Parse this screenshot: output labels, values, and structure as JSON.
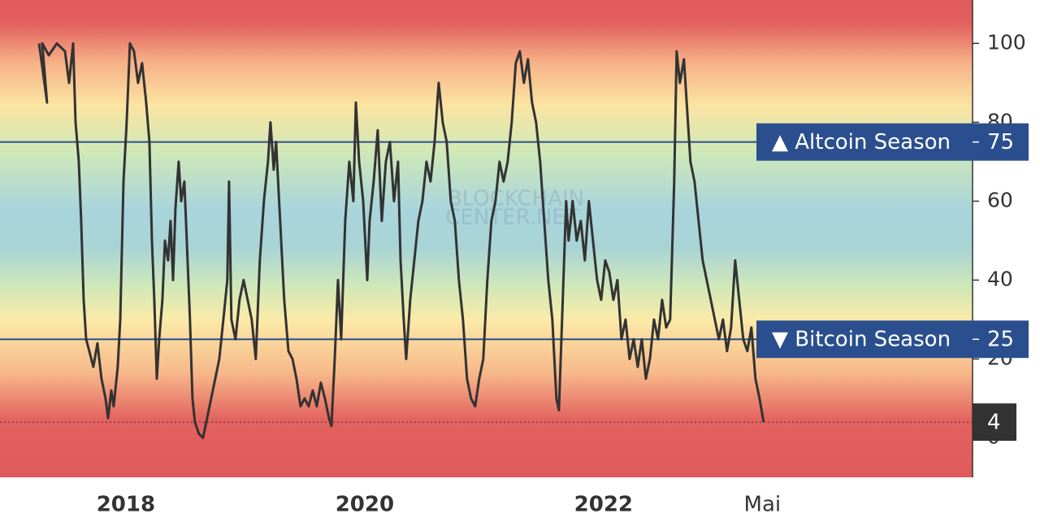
{
  "chart_data": {
    "type": "line",
    "watermark": [
      "BLOCKCHAIN",
      "CENTER.NET"
    ],
    "x": [
      2017.273,
      2017.34,
      2017.3,
      2017.354,
      2017.422,
      2017.49,
      2017.524,
      2017.558,
      2017.579,
      2017.606,
      2017.626,
      2017.647,
      2017.667,
      2017.694,
      2017.728,
      2017.762,
      2017.796,
      2017.83,
      2017.851,
      2017.878,
      2017.898,
      2017.932,
      2017.953,
      2017.98,
      2018.007,
      2018.034,
      2018.068,
      2018.102,
      2018.136,
      2018.17,
      2018.197,
      2018.218,
      2018.238,
      2018.259,
      2018.279,
      2018.306,
      2018.327,
      2018.354,
      2018.374,
      2018.395,
      2018.415,
      2018.442,
      2018.463,
      2018.49,
      2018.51,
      2018.537,
      2018.558,
      2018.578,
      2018.612,
      2018.646,
      2018.68,
      2018.714,
      2018.748,
      2018.782,
      2018.816,
      2018.85,
      2018.864,
      2018.884,
      2018.918,
      2018.952,
      2018.986,
      2019.02,
      2019.054,
      2019.088,
      2019.122,
      2019.156,
      2019.19,
      2019.211,
      2019.238,
      2019.258,
      2019.292,
      2019.326,
      2019.361,
      2019.395,
      2019.429,
      2019.463,
      2019.497,
      2019.531,
      2019.565,
      2019.599,
      2019.633,
      2019.667,
      2019.701,
      2019.721,
      2019.749,
      2019.776,
      2019.803,
      2019.837,
      2019.871,
      2019.905,
      2019.926,
      2019.953,
      2019.987,
      2020.021,
      2020.041,
      2020.075,
      2020.109,
      2020.143,
      2020.177,
      2020.211,
      2020.245,
      2020.279,
      2020.3,
      2020.327,
      2020.347,
      2020.381,
      2020.415,
      2020.449,
      2020.483,
      2020.517,
      2020.551,
      2020.585,
      2020.619,
      2020.653,
      2020.687,
      2020.721,
      2020.755,
      2020.789,
      2020.823,
      2020.857,
      2020.891,
      2020.925,
      2020.959,
      2020.993,
      2021.027,
      2021.061,
      2021.095,
      2021.129,
      2021.163,
      2021.197,
      2021.231,
      2021.265,
      2021.299,
      2021.333,
      2021.367,
      2021.401,
      2021.435,
      2021.469,
      2021.503,
      2021.537,
      2021.571,
      2021.605,
      2021.626,
      2021.653,
      2021.687,
      2021.707,
      2021.741,
      2021.775,
      2021.809,
      2021.843,
      2021.877,
      2021.911,
      2021.946,
      2021.98,
      2022.014,
      2022.048,
      2022.082,
      2022.116,
      2022.15,
      2022.184,
      2022.218,
      2022.252,
      2022.286,
      2022.32,
      2022.354,
      2022.388,
      2022.422,
      2022.456,
      2022.49,
      2022.524,
      2022.558,
      2022.592,
      2022.612,
      2022.639,
      2022.673,
      2022.707,
      2022.728,
      2022.762,
      2022.796,
      2022.83,
      2022.864,
      2022.898,
      2022.932,
      2022.966,
      2023.0,
      2023.034,
      2023.068,
      2023.102,
      2023.136,
      2023.17,
      2023.204,
      2023.238,
      2023.272,
      2023.306,
      2023.34
    ],
    "series": [
      {
        "color": "#333333",
        "values": [
          100,
          85,
          100,
          97,
          100,
          98,
          90,
          100,
          80,
          70,
          55,
          35,
          25,
          22,
          18,
          24,
          15,
          10,
          5,
          12,
          8,
          18,
          30,
          65,
          80,
          100,
          98,
          90,
          95,
          85,
          75,
          50,
          35,
          15,
          25,
          35,
          50,
          45,
          55,
          40,
          58,
          70,
          60,
          65,
          50,
          30,
          10,
          4,
          1,
          0,
          5,
          10,
          15,
          20,
          30,
          40,
          65,
          30,
          25,
          35,
          40,
          35,
          30,
          20,
          45,
          60,
          70,
          80,
          68,
          75,
          55,
          35,
          22,
          20,
          15,
          8,
          10,
          8,
          12,
          8,
          14,
          10,
          5,
          3,
          20,
          40,
          25,
          55,
          70,
          60,
          85,
          70,
          60,
          40,
          55,
          65,
          78,
          55,
          70,
          75,
          60,
          70,
          45,
          30,
          20,
          35,
          45,
          55,
          60,
          70,
          65,
          75,
          90,
          80,
          75,
          60,
          55,
          40,
          30,
          15,
          10,
          8,
          15,
          20,
          40,
          55,
          60,
          70,
          65,
          70,
          80,
          95,
          98,
          90,
          96,
          85,
          80,
          70,
          55,
          40,
          30,
          10,
          7,
          30,
          60,
          50,
          60,
          50,
          55,
          45,
          60,
          50,
          40,
          35,
          45,
          42,
          35,
          40,
          25,
          30,
          20,
          25,
          18,
          25,
          15,
          20,
          30,
          25,
          35,
          28,
          30,
          65,
          98,
          90,
          96,
          80,
          70,
          65,
          55,
          45,
          40,
          35,
          30,
          25,
          30,
          22,
          28,
          45,
          35,
          25,
          22,
          28,
          15,
          10,
          4
        ]
      }
    ],
    "xlim": [
      2016.946,
      2025.09
    ],
    "xticks": [
      2018,
      2020,
      2022,
      {
        "value": 2023.33,
        "label": "Mai"
      }
    ],
    "ylim": [
      -10,
      111
    ],
    "yticks": [
      0,
      20,
      40,
      60,
      80,
      100
    ],
    "reference_lines": [
      {
        "value": 75,
        "label": "▲ Altcoin Season",
        "color": "#2b4f8e"
      },
      {
        "value": 25,
        "label": "▼ Bitcoin Season",
        "color": "#2b4f8e"
      }
    ],
    "current_value": 4
  }
}
